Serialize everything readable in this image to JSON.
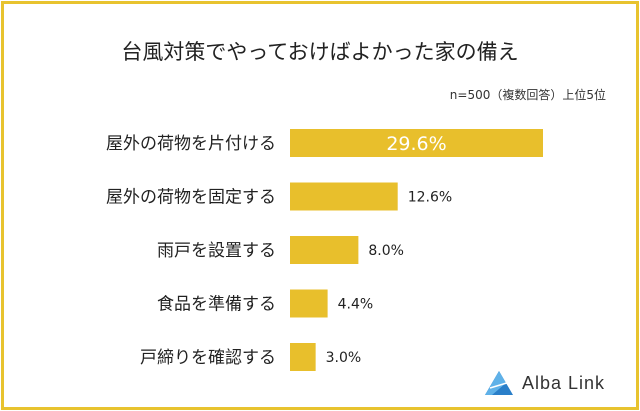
{
  "chart_data": {
    "type": "bar",
    "orientation": "horizontal",
    "title": "台風対策でやっておけばよかった家の備え",
    "note": "n=500（複数回答）上位5位",
    "categories": [
      "屋外の荷物を片付ける",
      "屋外の荷物を固定する",
      "雨戸を設置する",
      "食品を準備する",
      "戸締りを確認する"
    ],
    "values": [
      29.6,
      12.6,
      8.0,
      4.4,
      3.0
    ],
    "labels": [
      "29.6%",
      "12.6%",
      "8.0%",
      "4.4%",
      "3.0%"
    ],
    "bar_color": "#e8bf2c",
    "frame_color": "#e8c32e"
  },
  "logo": {
    "text": "Alba Link"
  }
}
